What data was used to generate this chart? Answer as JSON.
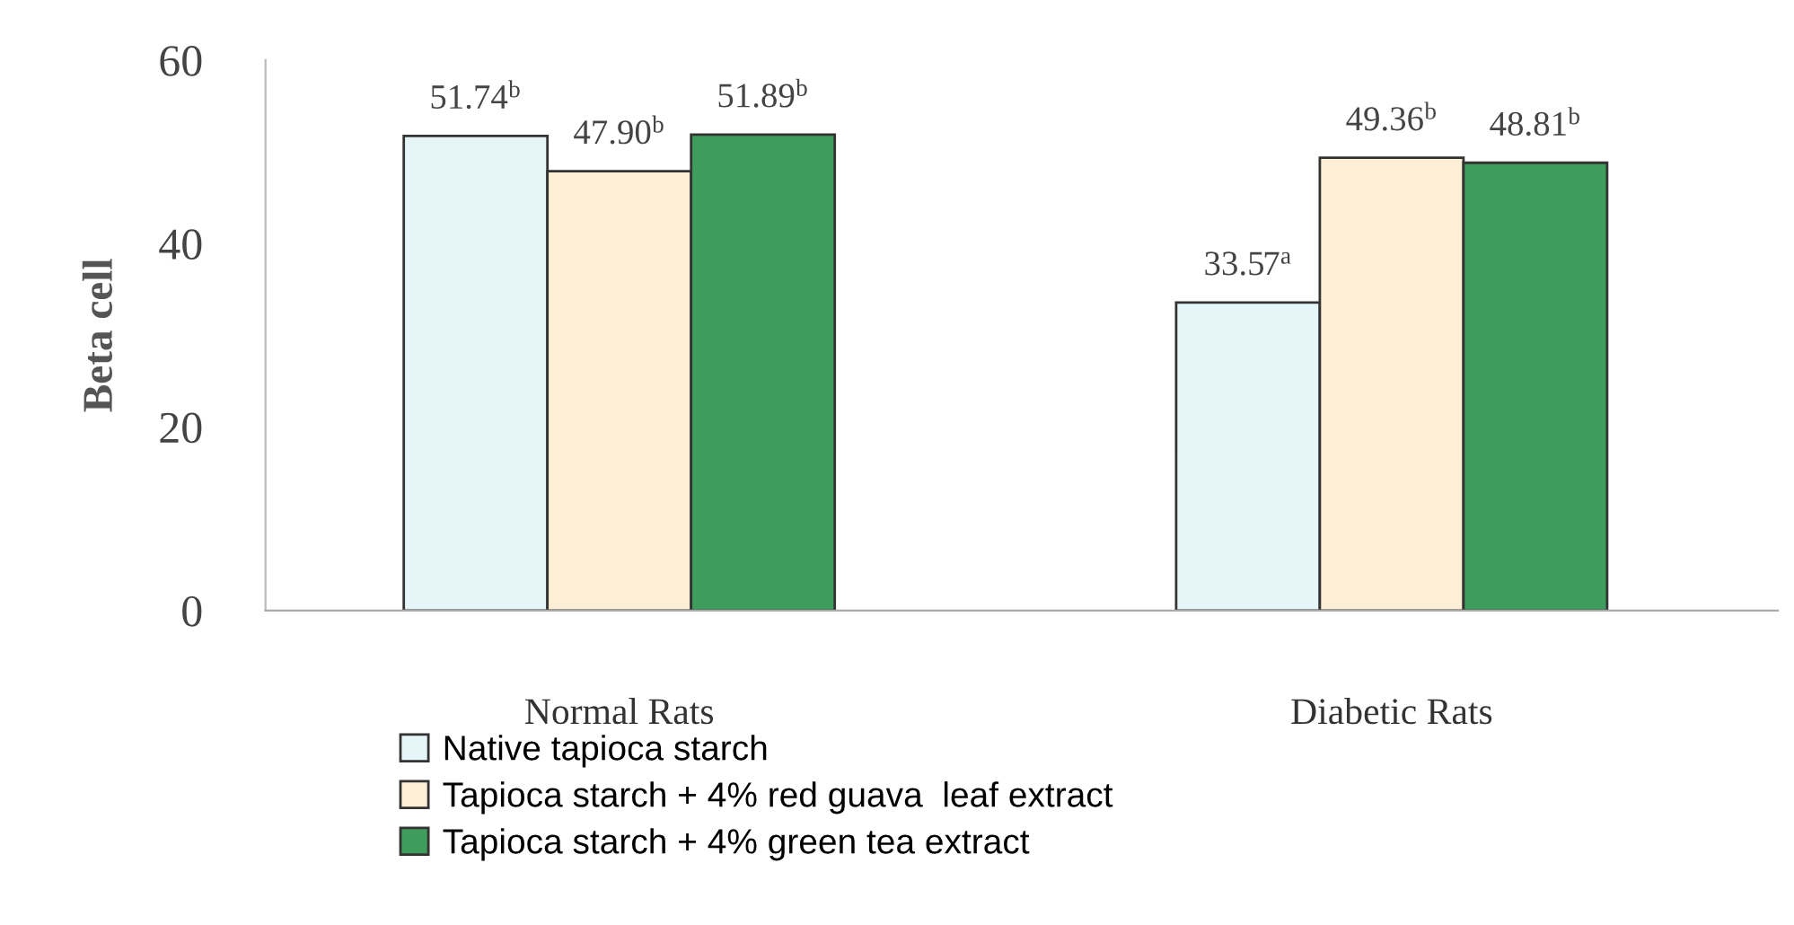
{
  "chart_data": {
    "type": "bar",
    "ylabel": "Beta cell",
    "categories": [
      "Normal Rats",
      "Diabetic Rats"
    ],
    "series": [
      {
        "name": "Native tapioca starch",
        "color": "#e6f6f8",
        "values": [
          51.74,
          33.57
        ],
        "value_labels": [
          "51.74$^{b}$",
          "33.57$^{a}$"
        ]
      },
      {
        "name": "Tapioca starch + 4% red guava  leaf extract",
        "color": "#fcefd6",
        "values": [
          47.9,
          49.36
        ],
        "value_labels": [
          "47.90$^{b}$",
          "49.36$^{b}$"
        ]
      },
      {
        "name": "Tapioca starch + 4% green tea extract",
        "color": "#3e9c5c",
        "values": [
          51.89,
          48.81
        ],
        "value_labels": [
          "51.89$^{b}$",
          "48.81$^{b}$"
        ]
      }
    ],
    "ylim": [
      0,
      60
    ],
    "yticks": [
      0,
      20,
      40,
      60
    ],
    "grid": false,
    "legend": "bottom"
  }
}
